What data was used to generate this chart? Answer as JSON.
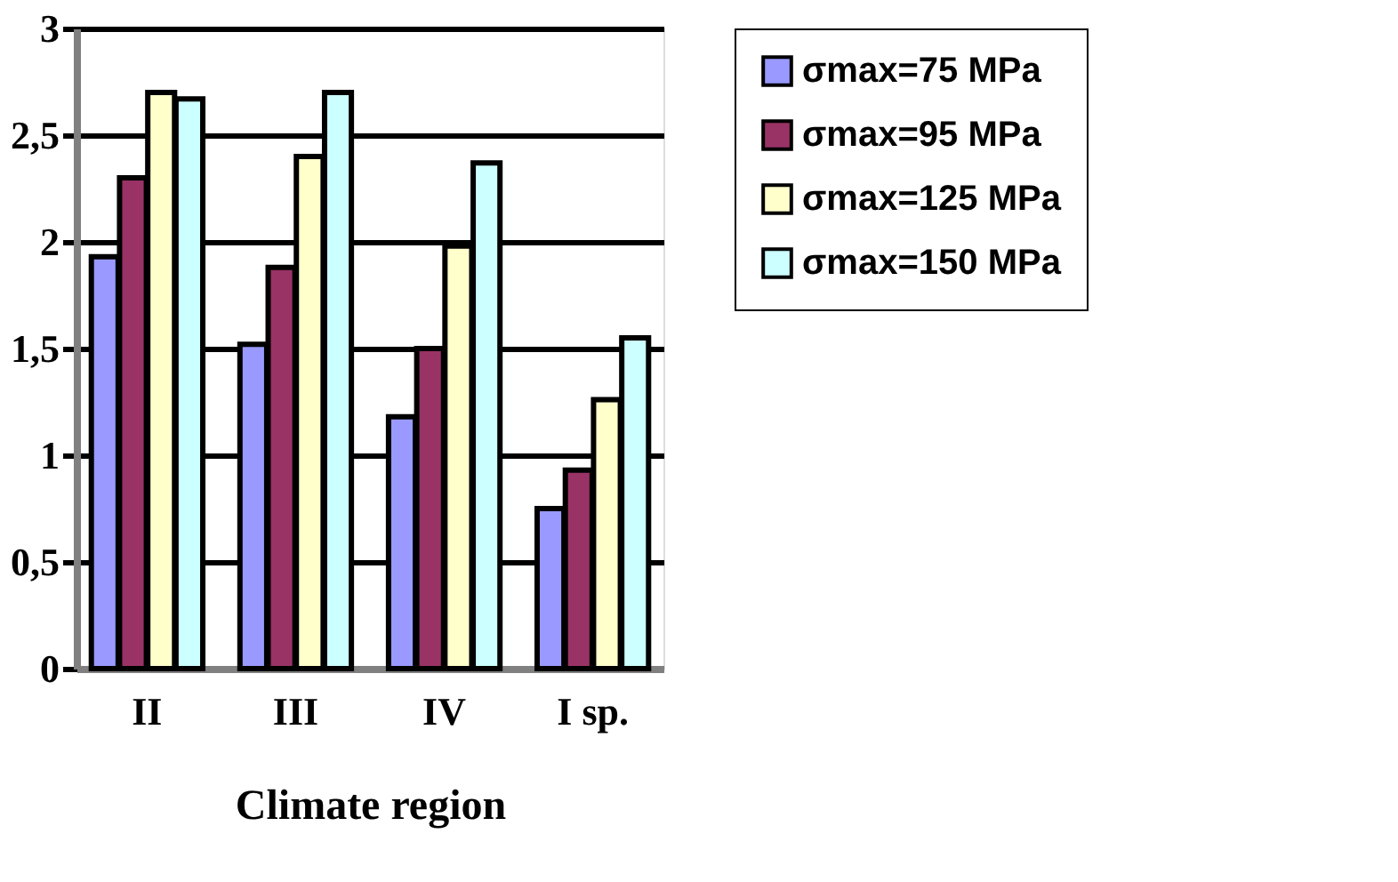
{
  "chart_data": {
    "type": "bar",
    "xlabel": "Climate region",
    "categories": [
      "II",
      "III",
      "IV",
      "I sp."
    ],
    "series": [
      {
        "name": "σmax=75 MPa",
        "color": "#9999ff",
        "values": [
          1.93,
          1.52,
          1.18,
          0.75
        ]
      },
      {
        "name": "σmax=95 MPa",
        "color": "#993366",
        "values": [
          2.3,
          1.88,
          1.5,
          0.93
        ]
      },
      {
        "name": "σmax=125 MPa",
        "color": "#ffffcc",
        "values": [
          2.7,
          2.4,
          1.98,
          1.26
        ]
      },
      {
        "name": "σmax=150 MPa",
        "color": "#ccffff",
        "values": [
          2.67,
          2.7,
          2.37,
          1.55
        ]
      }
    ],
    "ylim": [
      0,
      3
    ],
    "yticks": [
      0,
      {
        "value": 0.5,
        "label": "0,5"
      },
      1,
      {
        "value": 1.5,
        "label": "1,5"
      },
      2,
      {
        "value": 2.5,
        "label": "2,5"
      },
      3
    ],
    "grid": "y",
    "legend": "right"
  }
}
